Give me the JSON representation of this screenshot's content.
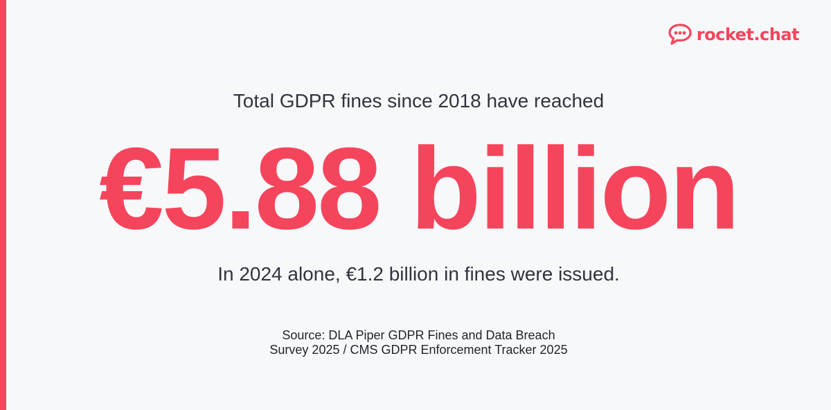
{
  "brand": {
    "name": "rocket.chat",
    "icon": "chat-bubble-icon",
    "color": "#f5455c"
  },
  "stat": {
    "lead": "Total GDPR fines since 2018 have reached",
    "headline": "€5.88 billion",
    "subline": "In 2024 alone, €1.2 billion in fines were issued."
  },
  "source": {
    "line1": "Source: DLA Piper GDPR Fines and Data Breach",
    "line2": "Survey 2025 / CMS GDPR Enforcement Tracker 2025"
  },
  "colors": {
    "accent": "#f5455c",
    "background": "#f7f8fa",
    "text": "#2f343d"
  }
}
